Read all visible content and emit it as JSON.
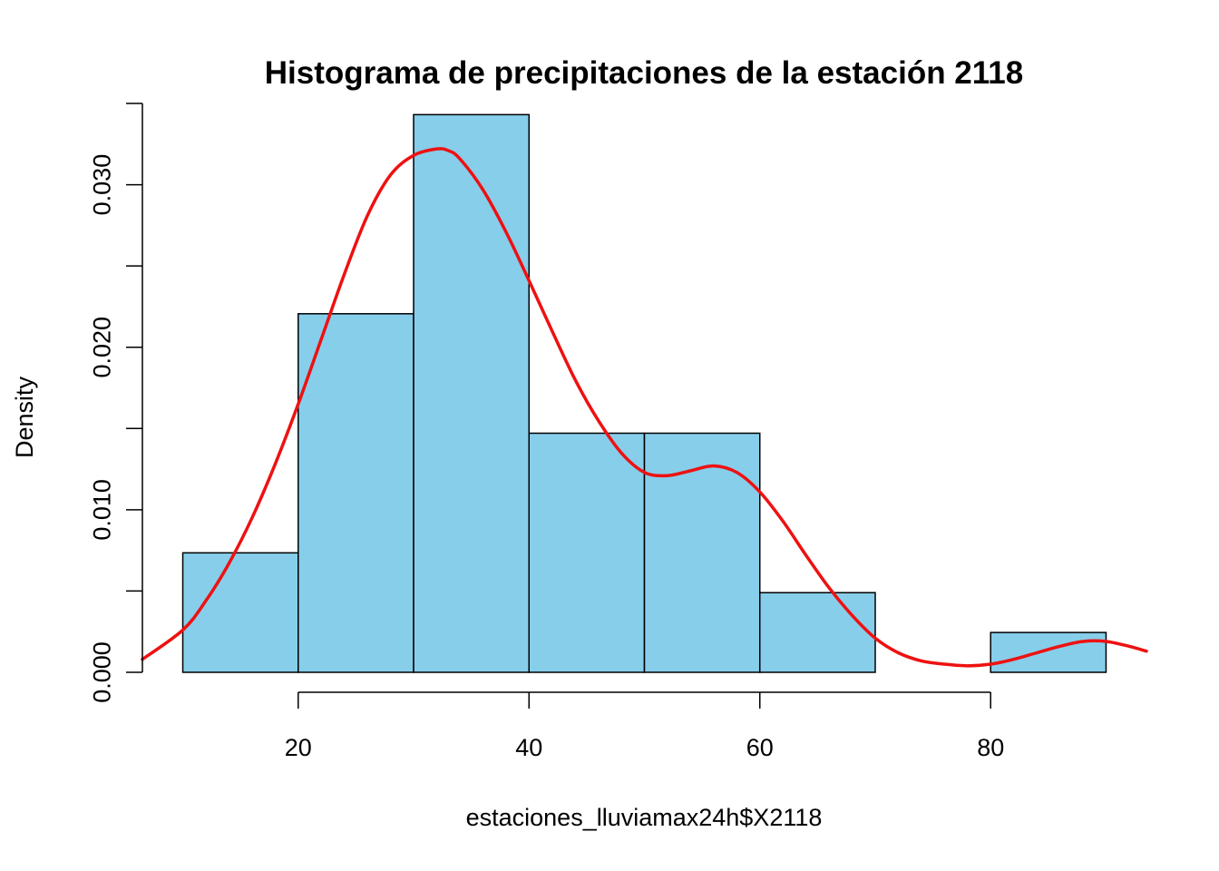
{
  "chart_data": {
    "type": "bar",
    "subtype": "histogram-with-density",
    "title": "Histograma de precipitaciones de  la estación 2118",
    "xlabel": "estaciones_lluviamax24h$X2118",
    "ylabel": "Density",
    "xlim": [
      6.5,
      93.5
    ],
    "ylim": [
      0,
      0.035
    ],
    "x_ticks": [
      20,
      40,
      60,
      80
    ],
    "x_tick_labels": [
      "20",
      "40",
      "60",
      "80"
    ],
    "y_ticks": [
      0,
      0.005,
      0.01,
      0.015,
      0.02,
      0.025,
      0.03,
      0.035
    ],
    "y_tick_labels": [
      "0.000",
      "",
      "0.010",
      "",
      "0.020",
      "",
      "0.030",
      ""
    ],
    "bins": [
      {
        "start": 10,
        "end": 20,
        "density": 0.00735
      },
      {
        "start": 20,
        "end": 30,
        "density": 0.02206
      },
      {
        "start": 30,
        "end": 40,
        "density": 0.03431
      },
      {
        "start": 40,
        "end": 50,
        "density": 0.01471
      },
      {
        "start": 50,
        "end": 60,
        "density": 0.01471
      },
      {
        "start": 60,
        "end": 70,
        "density": 0.0049
      },
      {
        "start": 70,
        "end": 80,
        "density": 0
      },
      {
        "start": 80,
        "end": 90,
        "density": 0.00245
      }
    ],
    "density_curve": {
      "x": [
        6.5,
        10,
        12,
        14,
        16,
        18,
        20,
        22,
        24,
        26,
        28,
        30,
        32,
        33,
        34,
        36,
        38,
        40,
        42,
        44,
        46,
        48,
        50,
        52,
        54,
        56,
        58,
        60,
        62,
        64,
        66,
        68,
        70,
        72,
        74,
        76,
        78,
        80,
        82,
        84,
        86,
        88,
        90,
        92,
        93.5
      ],
      "y": [
        0.0008,
        0.0026,
        0.0044,
        0.0067,
        0.0095,
        0.0128,
        0.0165,
        0.0205,
        0.0245,
        0.0281,
        0.0306,
        0.0318,
        0.0322,
        0.0321,
        0.0316,
        0.0297,
        0.0271,
        0.0241,
        0.021,
        0.018,
        0.0155,
        0.0135,
        0.0123,
        0.0121,
        0.0124,
        0.0127,
        0.0123,
        0.0111,
        0.0093,
        0.0072,
        0.0052,
        0.0035,
        0.0021,
        0.0012,
        0.0007,
        0.0005,
        0.0004,
        0.0005,
        0.0008,
        0.0012,
        0.0016,
        0.0019,
        0.0019,
        0.0016,
        0.0013
      ]
    },
    "colors": {
      "bar_fill": "#87CEEB",
      "curve": "#EE1111"
    }
  }
}
